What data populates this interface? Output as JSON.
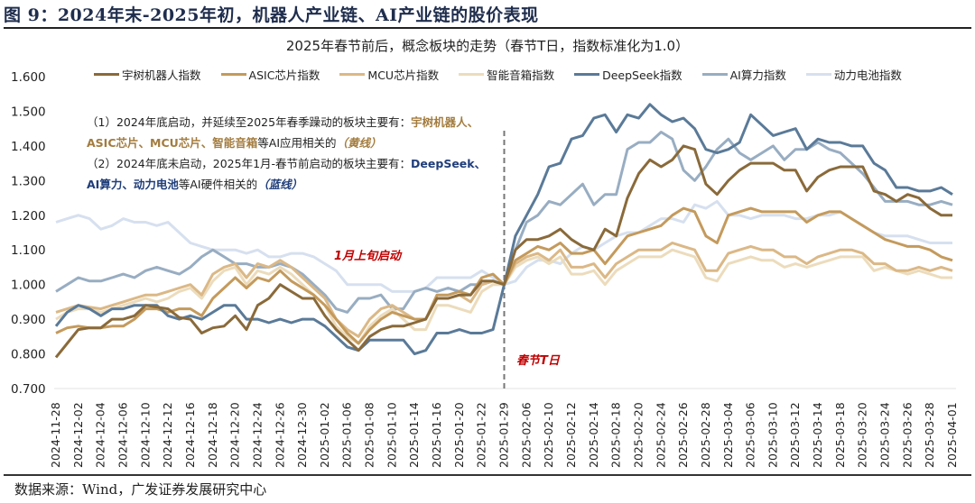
{
  "figure": {
    "title": "图 9：2024年末-2025年初，机器人产业链、AI产业链的股价表现",
    "source": "数据来源：Wind，广发证券发展研究中心"
  },
  "notes": {
    "line1_prefix": "（1）2024年底启动，并延续至2025年春季躁动的板块主要有：",
    "line1_highlight": "宇树机器人、",
    "line2_highlight": "ASIC芯片、MCU芯片、智能音箱",
    "line2_suffix": "等AI应用相关的",
    "line2_tag": "（黄线）",
    "line3_prefix": "（2）2024年底未启动，2025年1月-春节前启动的板块主要有：",
    "line3_highlight": "DeepSeek、",
    "line4_highlight": "AI算力、动力电池",
    "line4_suffix": "等AI硬件相关的",
    "line4_tag": "（蓝线）"
  },
  "annotations": {
    "jan_start": "1月上旬启动",
    "t_day": "春节T日"
  },
  "chart_data": {
    "type": "line",
    "title": "2025年春节前后，概念板块的走势（春节T日，指数标准化为1.0）",
    "xlabel": "",
    "ylabel": "",
    "ylim": [
      0.7,
      1.6
    ],
    "yticks": [
      "1.600",
      "1.500",
      "1.400",
      "1.300",
      "1.200",
      "1.100",
      "1.000",
      "0.900",
      "0.800",
      "0.700"
    ],
    "grid": false,
    "legend_position": "top",
    "t_day_index": 40,
    "x_tick_labels": [
      "2024-11-28",
      "2024-12-02",
      "2024-12-04",
      "2024-12-06",
      "2024-12-10",
      "2024-12-12",
      "2024-12-16",
      "2024-12-18",
      "2024-12-20",
      "2024-12-24",
      "2024-12-26",
      "2024-12-30",
      "2025-01-02",
      "2025-01-06",
      "2025-01-08",
      "2025-01-10",
      "2025-01-14",
      "2025-01-16",
      "2025-01-20",
      "2025-01-22",
      "2025-01-29",
      "2025-02-06",
      "2025-02-10",
      "2025-02-12",
      "2025-02-14",
      "2025-02-18",
      "2025-02-20",
      "2025-02-24",
      "2025-02-26",
      "2025-02-28",
      "2025-03-04",
      "2025-03-06",
      "2025-03-10",
      "2025-03-12",
      "2025-03-14",
      "2025-03-18",
      "2025-03-20",
      "2025-03-24",
      "2025-03-26",
      "2025-03-28",
      "2025-04-01"
    ],
    "series": [
      {
        "name": "宇树机器人指数",
        "color": "#8a6a3a",
        "values": [
          0.79,
          0.83,
          0.87,
          0.875,
          0.875,
          0.9,
          0.9,
          0.91,
          0.94,
          0.935,
          0.93,
          0.905,
          0.9,
          0.86,
          0.875,
          0.88,
          0.91,
          0.87,
          0.94,
          0.96,
          1.0,
          0.98,
          0.96,
          0.96,
          0.91,
          0.87,
          0.84,
          0.81,
          0.85,
          0.87,
          0.88,
          0.88,
          0.89,
          0.9,
          0.96,
          0.96,
          0.97,
          0.97,
          1.01,
          1.01,
          1.0,
          1.1,
          1.13,
          1.13,
          1.14,
          1.16,
          1.13,
          1.11,
          1.1,
          1.16,
          1.14,
          1.25,
          1.32,
          1.36,
          1.34,
          1.36,
          1.4,
          1.39,
          1.29,
          1.26,
          1.3,
          1.33,
          1.35,
          1.35,
          1.35,
          1.33,
          1.33,
          1.27,
          1.31,
          1.33,
          1.34,
          1.34,
          1.34,
          1.27,
          1.26,
          1.24,
          1.26,
          1.25,
          1.22,
          1.2,
          1.2
        ]
      },
      {
        "name": "ASIC芯片指数",
        "color": "#c49a5c",
        "values": [
          0.86,
          0.875,
          0.88,
          0.875,
          0.875,
          0.88,
          0.88,
          0.9,
          0.93,
          0.93,
          0.92,
          0.93,
          0.93,
          0.91,
          0.96,
          0.99,
          1.02,
          0.99,
          1.02,
          1.01,
          1.04,
          1.01,
          0.99,
          0.97,
          0.94,
          0.9,
          0.86,
          0.83,
          0.87,
          0.9,
          0.92,
          0.91,
          0.9,
          0.9,
          0.97,
          0.97,
          0.98,
          0.97,
          1.02,
          1.03,
          1.0,
          1.07,
          1.09,
          1.11,
          1.1,
          1.12,
          1.09,
          1.09,
          1.1,
          1.06,
          1.1,
          1.14,
          1.15,
          1.16,
          1.17,
          1.2,
          1.22,
          1.21,
          1.14,
          1.12,
          1.2,
          1.21,
          1.22,
          1.21,
          1.21,
          1.21,
          1.21,
          1.18,
          1.2,
          1.21,
          1.21,
          1.19,
          1.17,
          1.15,
          1.13,
          1.12,
          1.11,
          1.11,
          1.1,
          1.08,
          1.07
        ]
      },
      {
        "name": "MCU芯片指数",
        "color": "#dbb886",
        "values": [
          0.92,
          0.93,
          0.94,
          0.935,
          0.93,
          0.94,
          0.95,
          0.96,
          0.97,
          0.97,
          0.98,
          0.99,
          1.0,
          0.97,
          1.03,
          1.05,
          1.06,
          1.02,
          1.06,
          1.05,
          1.07,
          1.05,
          1.02,
          0.99,
          0.96,
          0.9,
          0.87,
          0.85,
          0.9,
          0.93,
          0.94,
          0.92,
          0.9,
          0.9,
          0.96,
          0.96,
          0.97,
          0.95,
          1.0,
          1.01,
          1.0,
          1.06,
          1.08,
          1.09,
          1.07,
          1.1,
          1.05,
          1.05,
          1.06,
          1.02,
          1.06,
          1.08,
          1.1,
          1.1,
          1.1,
          1.12,
          1.11,
          1.1,
          1.04,
          1.04,
          1.09,
          1.1,
          1.11,
          1.1,
          1.1,
          1.08,
          1.08,
          1.06,
          1.08,
          1.09,
          1.1,
          1.1,
          1.09,
          1.06,
          1.06,
          1.04,
          1.04,
          1.05,
          1.04,
          1.05,
          1.04
        ]
      },
      {
        "name": "智能音箱指数",
        "color": "#ecdcbc",
        "values": [
          0.9,
          0.92,
          0.93,
          0.93,
          0.92,
          0.93,
          0.94,
          0.95,
          0.96,
          0.95,
          0.96,
          0.98,
          0.99,
          0.96,
          1.01,
          1.04,
          1.05,
          1.0,
          1.04,
          1.03,
          1.05,
          1.03,
          1.0,
          0.97,
          0.94,
          0.88,
          0.85,
          0.83,
          0.88,
          0.91,
          0.93,
          0.9,
          0.87,
          0.87,
          0.94,
          0.94,
          0.93,
          0.92,
          0.98,
          1.0,
          1.0,
          1.05,
          1.07,
          1.08,
          1.06,
          1.08,
          1.03,
          1.03,
          1.04,
          1.0,
          1.04,
          1.06,
          1.08,
          1.08,
          1.08,
          1.1,
          1.09,
          1.08,
          1.02,
          1.01,
          1.06,
          1.07,
          1.08,
          1.07,
          1.07,
          1.05,
          1.06,
          1.05,
          1.06,
          1.07,
          1.08,
          1.08,
          1.08,
          1.04,
          1.05,
          1.04,
          1.03,
          1.04,
          1.03,
          1.02,
          1.02
        ]
      },
      {
        "name": "DeepSeek指数",
        "color": "#5a7a98",
        "values": [
          0.88,
          0.92,
          0.94,
          0.93,
          0.91,
          0.93,
          0.93,
          0.94,
          0.94,
          0.94,
          0.91,
          0.9,
          0.91,
          0.9,
          0.92,
          0.94,
          0.94,
          0.9,
          0.9,
          0.89,
          0.9,
          0.89,
          0.9,
          0.9,
          0.88,
          0.85,
          0.82,
          0.81,
          0.84,
          0.84,
          0.84,
          0.84,
          0.8,
          0.81,
          0.86,
          0.86,
          0.87,
          0.86,
          0.86,
          0.87,
          1.0,
          1.14,
          1.2,
          1.26,
          1.34,
          1.35,
          1.42,
          1.43,
          1.48,
          1.49,
          1.44,
          1.49,
          1.48,
          1.52,
          1.49,
          1.47,
          1.48,
          1.45,
          1.39,
          1.38,
          1.39,
          1.41,
          1.49,
          1.46,
          1.43,
          1.44,
          1.45,
          1.39,
          1.42,
          1.41,
          1.41,
          1.4,
          1.4,
          1.35,
          1.33,
          1.28,
          1.28,
          1.27,
          1.27,
          1.28,
          1.26
        ]
      },
      {
        "name": "AI算力指数",
        "color": "#98adc2",
        "values": [
          0.98,
          1.0,
          1.02,
          1.01,
          1.01,
          1.02,
          1.03,
          1.02,
          1.04,
          1.05,
          1.04,
          1.03,
          1.05,
          1.08,
          1.1,
          1.08,
          1.06,
          1.06,
          1.05,
          1.05,
          1.06,
          1.05,
          1.03,
          1.0,
          0.97,
          0.93,
          0.92,
          0.96,
          0.96,
          0.97,
          0.93,
          0.93,
          0.98,
          0.99,
          0.98,
          0.99,
          0.98,
          1.0,
          1.0,
          1.01,
          1.0,
          1.1,
          1.18,
          1.2,
          1.24,
          1.23,
          1.26,
          1.29,
          1.23,
          1.26,
          1.26,
          1.39,
          1.41,
          1.41,
          1.44,
          1.42,
          1.33,
          1.3,
          1.34,
          1.39,
          1.42,
          1.38,
          1.36,
          1.38,
          1.4,
          1.36,
          1.39,
          1.39,
          1.41,
          1.39,
          1.38,
          1.35,
          1.32,
          1.28,
          1.24,
          1.24,
          1.24,
          1.23,
          1.23,
          1.24,
          1.23
        ]
      },
      {
        "name": "动力电池指数",
        "color": "#d6e0ef",
        "values": [
          1.18,
          1.19,
          1.2,
          1.19,
          1.16,
          1.17,
          1.19,
          1.18,
          1.18,
          1.17,
          1.18,
          1.15,
          1.12,
          1.11,
          1.1,
          1.1,
          1.1,
          1.09,
          1.1,
          1.08,
          1.08,
          1.09,
          1.09,
          1.08,
          1.06,
          1.04,
          1.0,
          1.0,
          1.0,
          1.0,
          0.98,
          0.98,
          0.98,
          0.99,
          1.02,
          1.02,
          1.02,
          1.02,
          1.04,
          1.02,
          1.0,
          1.01,
          1.05,
          1.07,
          1.07,
          1.06,
          1.09,
          1.11,
          1.1,
          1.12,
          1.14,
          1.15,
          1.15,
          1.17,
          1.19,
          1.19,
          1.18,
          1.23,
          1.22,
          1.24,
          1.2,
          1.2,
          1.19,
          1.2,
          1.2,
          1.2,
          1.19,
          1.19,
          1.2,
          1.2,
          1.21,
          1.19,
          1.17,
          1.15,
          1.14,
          1.14,
          1.14,
          1.13,
          1.12,
          1.12,
          1.12
        ]
      }
    ]
  }
}
